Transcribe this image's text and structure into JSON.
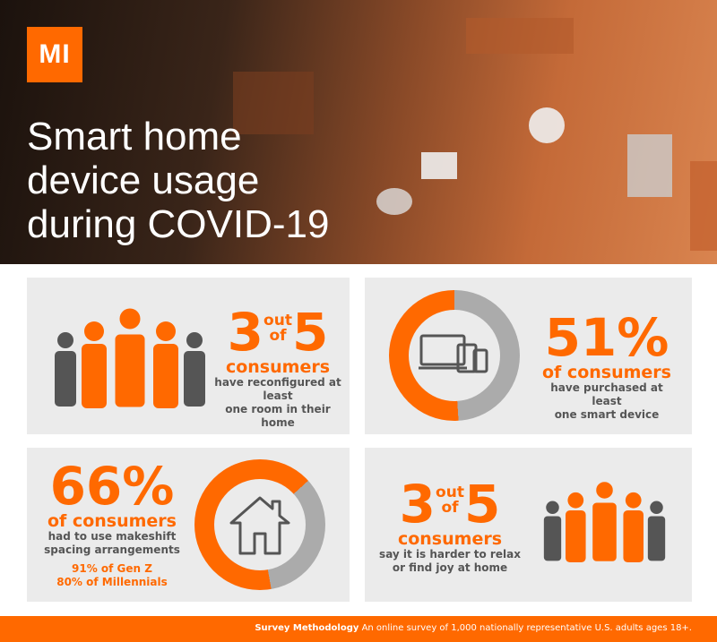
{
  "header": {
    "logo": "MI",
    "title_lines": [
      "Smart home",
      "device usage",
      "during COVID-19"
    ]
  },
  "stats": [
    {
      "num1": "3",
      "of1": "out",
      "of2": "of",
      "num2": "5",
      "label": "consumers",
      "desc": [
        "have reconfigured at least",
        "one room in their home"
      ]
    },
    {
      "value": "51%",
      "percent": 51,
      "label": "of consumers",
      "desc": [
        "have purchased at least",
        "one smart device"
      ]
    },
    {
      "value": "66%",
      "percent": 66,
      "label": "of consumers",
      "desc": [
        "had to use makeshift",
        "spacing arrangements"
      ],
      "extra": [
        "91% of Gen Z",
        "80% of Millennials"
      ]
    },
    {
      "num1": "3",
      "of1": "out",
      "of2": "of",
      "num2": "5",
      "label": "consumers",
      "desc": [
        "say it is harder to relax",
        "or find joy at home"
      ]
    }
  ],
  "footer": {
    "bold": "Survey Methodology",
    "text": "An online survey of 1,000 nationally representative U.S. adults ages 18+."
  },
  "colors": {
    "accent": "#ff6900",
    "gray": "#ababab",
    "dark": "#555555"
  }
}
